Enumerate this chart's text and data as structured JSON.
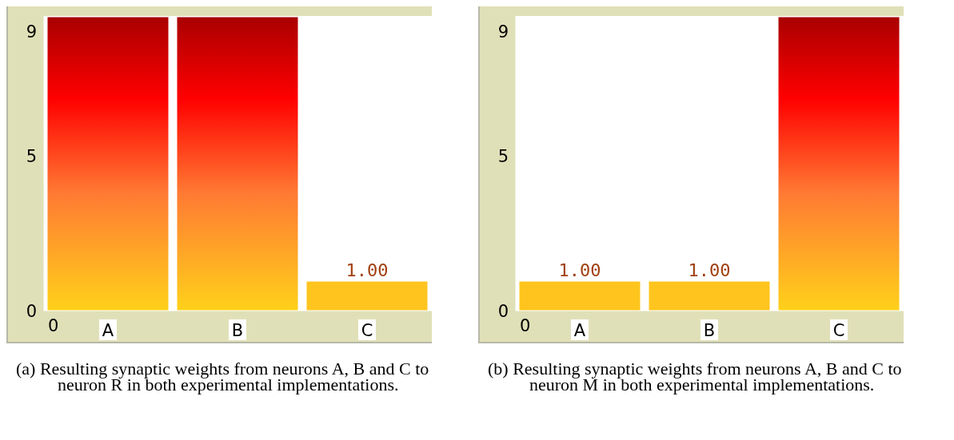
{
  "chart_data": [
    {
      "type": "bar",
      "categories": [
        "A",
        "B",
        "C"
      ],
      "values": [
        9.5,
        9.5,
        1.0
      ],
      "value_labels": [
        null,
        null,
        "1.00"
      ],
      "colors": [
        "#ff0000",
        "#ff0000",
        "#ffc51e"
      ],
      "ylim": [
        0,
        9.5
      ],
      "yticks": [
        0,
        5,
        9
      ],
      "grid": false,
      "legend": false,
      "annotations": [
        "0",
        "(a) Resulting synaptic weights from neurons A, B and C to neuron R in both experimental implementations."
      ]
    },
    {
      "type": "bar",
      "categories": [
        "A",
        "B",
        "C"
      ],
      "values": [
        1.0,
        1.0,
        9.5
      ],
      "value_labels": [
        "1.00",
        "1.00",
        null
      ],
      "colors": [
        "#ffc51e",
        "#ffc51e",
        "#ff0000"
      ],
      "ylim": [
        0,
        9.5
      ],
      "yticks": [
        0,
        5,
        9
      ],
      "grid": false,
      "legend": false,
      "annotations": [
        "0",
        "(b) Resulting synaptic weights from neurons A, B and C to neuron M in both experimental implementations."
      ]
    }
  ]
}
